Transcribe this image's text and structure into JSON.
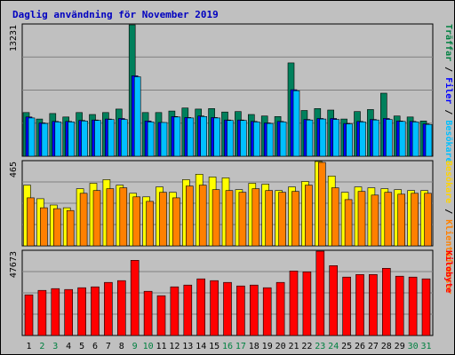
{
  "chart_data": {
    "type": "bar",
    "title": "Daglig användning för November 2019",
    "categories": [
      "1",
      "2",
      "3",
      "4",
      "5",
      "6",
      "7",
      "8",
      "9",
      "10",
      "11",
      "12",
      "13",
      "14",
      "15",
      "16",
      "17",
      "18",
      "19",
      "20",
      "21",
      "22",
      "23",
      "24",
      "25",
      "26",
      "27",
      "28",
      "29",
      "30",
      "31"
    ],
    "weekend_days": [
      "2",
      "3",
      "9",
      "10",
      "16",
      "17",
      "23",
      "24",
      "30",
      "31"
    ],
    "panels": [
      {
        "name": "hits-files-visits",
        "ymax": 13231,
        "ymax_label": "13231",
        "legend": [
          {
            "label": "Träffar",
            "color": "#008040"
          },
          {
            "label": "/",
            "color": "#000000"
          },
          {
            "label": "Filer",
            "color": "#0000ff"
          },
          {
            "label": "/",
            "color": "#000000"
          },
          {
            "label": "Besökare",
            "color": "#00c0ff"
          }
        ],
        "series": [
          {
            "name": "Träffar",
            "color": "#00805c",
            "values": [
              4400,
              3750,
              4300,
              3950,
              4400,
              4200,
              4400,
              4750,
              13231,
              4400,
              4400,
              4550,
              4850,
              4750,
              4800,
              4450,
              4500,
              4200,
              4050,
              4000,
              9400,
              4600,
              4800,
              4650,
              3750,
              4500,
              4700,
              6350,
              4050,
              3950,
              3550
            ]
          },
          {
            "name": "Filer",
            "color": "#0000ff",
            "values": [
              3950,
              3350,
              3500,
              3500,
              3600,
              3650,
              3750,
              3800,
              8100,
              3550,
              3400,
              4000,
              3900,
              4050,
              3900,
              3650,
              3650,
              3500,
              3350,
              3500,
              6700,
              3700,
              3800,
              3800,
              3300,
              3500,
              3700,
              3800,
              3550,
              3500,
              3250
            ]
          },
          {
            "name": "Besökare",
            "color": "#00c0ff",
            "values": [
              3850,
              3300,
              3450,
              3450,
              3550,
              3600,
              3700,
              3700,
              8000,
              3450,
              3400,
              3950,
              3850,
              4000,
              3850,
              3600,
              3600,
              3450,
              3300,
              3450,
              6600,
              3650,
              3750,
              3700,
              3250,
              3450,
              3650,
              3700,
              3500,
              3450,
              3200
            ]
          }
        ]
      },
      {
        "name": "visitors-sites",
        "ymax": 465,
        "ymax_label": "465",
        "legend": [
          {
            "label": "Besökare",
            "color": "#ffd400"
          },
          {
            "label": "/",
            "color": "#000000"
          },
          {
            "label": "Klientadresser",
            "color": "#ff8000"
          }
        ],
        "series": [
          {
            "name": "Besökare",
            "color": "#ffff00",
            "values": [
              335,
              260,
              225,
              210,
              315,
              345,
              365,
              335,
              290,
              270,
              325,
              295,
              365,
              395,
              380,
              375,
              310,
              345,
              340,
              305,
              325,
              355,
              465,
              385,
              295,
              325,
              320,
              315,
              310,
              305,
              305
            ]
          },
          {
            "name": "Klientadresser",
            "color": "#ff8000",
            "values": [
              265,
              210,
              205,
              195,
              290,
              305,
              315,
              320,
              270,
              245,
              295,
              265,
              330,
              335,
              310,
              305,
              295,
              315,
              305,
              295,
              300,
              335,
              460,
              320,
              255,
              300,
              280,
              295,
              285,
              290,
              290
            ]
          }
        ]
      },
      {
        "name": "kilobytes",
        "ymax": 47673,
        "ymax_label": "47673",
        "legend": [
          {
            "label": "Kilobyte",
            "color": "#ff0000"
          }
        ],
        "series": [
          {
            "name": "Kilobyte",
            "color": "#ff0000",
            "values": [
              23000,
              25500,
              26500,
              26000,
              27000,
              27500,
              30000,
              31000,
              42500,
              25000,
              22500,
              27500,
              28500,
              32000,
              31000,
              30000,
              28000,
              28500,
              27000,
              30000,
              36500,
              36000,
              47673,
              39500,
              33000,
              34500,
              34500,
              38000,
              33500,
              33000,
              32000
            ]
          }
        ]
      }
    ]
  }
}
